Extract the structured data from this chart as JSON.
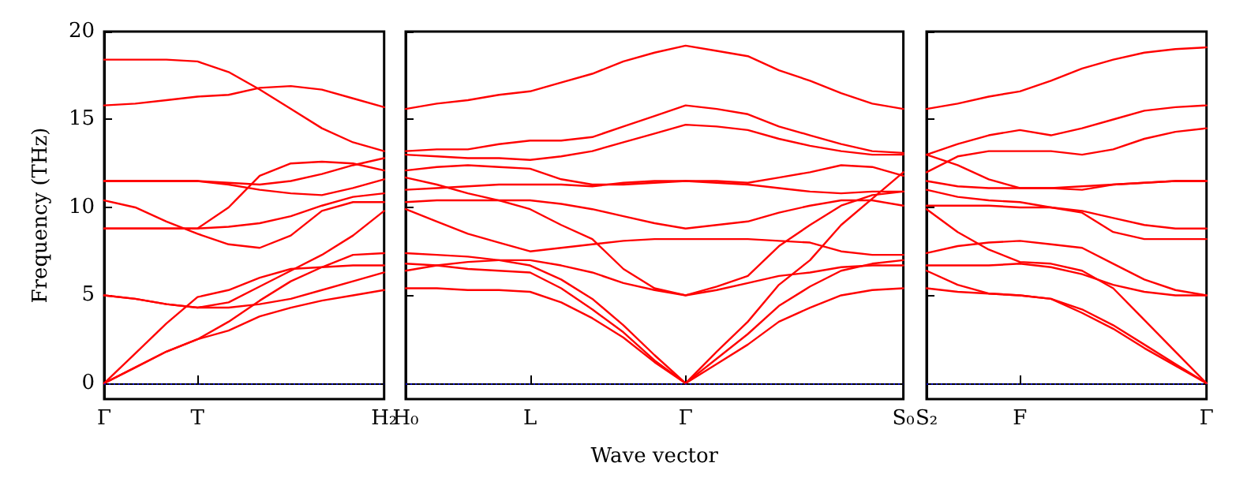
{
  "chart_data": [
    {
      "type": "line",
      "ylabel": "Frequency (THz)",
      "categories": [
        "Γ",
        null,
        null,
        "T",
        null,
        null,
        null,
        null,
        null,
        "H₂"
      ],
      "ylim": [
        -0.9,
        20
      ],
      "yticks": [
        0,
        5,
        10,
        15,
        20
      ],
      "ref_lines": [
        {
          "axis": "y",
          "value": 0,
          "color": "#0000ff",
          "line_style": "dotted"
        }
      ],
      "series": [
        {
          "color": "#ff0000",
          "values": [
            0,
            0.9,
            1.8,
            2.5,
            3.0,
            3.8,
            4.3,
            4.7,
            5.0,
            5.3
          ]
        },
        {
          "color": "#ff0000",
          "values": [
            0,
            0.9,
            1.8,
            2.5,
            3.5,
            4.7,
            5.8,
            6.6,
            7.3,
            7.4
          ]
        },
        {
          "color": "#ff0000",
          "values": [
            0,
            1.7,
            3.4,
            4.9,
            5.3,
            6.0,
            6.5,
            6.6,
            6.7,
            6.7
          ]
        },
        {
          "color": "#ff0000",
          "values": [
            5.0,
            4.8,
            4.5,
            4.3,
            4.3,
            4.5,
            4.8,
            5.3,
            5.8,
            6.3
          ]
        },
        {
          "color": "#ff0000",
          "values": [
            5.0,
            4.8,
            4.5,
            4.3,
            4.6,
            5.5,
            6.4,
            7.3,
            8.4,
            9.8
          ]
        },
        {
          "color": "#ff0000",
          "values": [
            8.8,
            8.8,
            8.8,
            8.8,
            8.9,
            9.1,
            9.5,
            10.1,
            10.6,
            10.8
          ]
        },
        {
          "color": "#ff0000",
          "values": [
            8.8,
            8.8,
            8.8,
            8.8,
            10.0,
            11.8,
            12.5,
            12.6,
            12.5,
            12.1
          ]
        },
        {
          "color": "#ff0000",
          "values": [
            10.4,
            10.0,
            9.2,
            8.5,
            7.9,
            7.7,
            8.4,
            9.8,
            10.3,
            10.3
          ]
        },
        {
          "color": "#ff0000",
          "values": [
            11.5,
            11.5,
            11.5,
            11.5,
            11.4,
            11.3,
            11.5,
            11.9,
            12.4,
            12.8
          ]
        },
        {
          "color": "#ff0000",
          "values": [
            11.5,
            11.5,
            11.5,
            11.5,
            11.3,
            11.0,
            10.8,
            10.7,
            11.1,
            11.6
          ]
        },
        {
          "color": "#ff0000",
          "values": [
            15.8,
            15.9,
            16.1,
            16.3,
            16.4,
            16.8,
            16.9,
            16.7,
            16.2,
            15.7
          ]
        },
        {
          "color": "#ff0000",
          "values": [
            18.4,
            18.4,
            18.4,
            18.3,
            17.7,
            16.7,
            15.6,
            14.5,
            13.7,
            13.2
          ]
        }
      ]
    },
    {
      "type": "line",
      "xlabel": "Wave vector",
      "tick_labels": "x",
      "categories": [
        "H₀",
        null,
        null,
        null,
        "L",
        null,
        null,
        null,
        null,
        "Γ",
        null,
        null,
        null,
        null,
        null,
        null,
        "S₀"
      ],
      "ylim": [
        -0.9,
        20
      ],
      "yticks": [
        0,
        5,
        10,
        15,
        20
      ],
      "ref_lines": [
        {
          "axis": "y",
          "value": 0,
          "color": "#0000ff",
          "line_style": "dotted"
        }
      ],
      "series": [
        {
          "color": "#ff0000",
          "values": [
            15.6,
            15.9,
            16.1,
            16.4,
            16.6,
            17.1,
            17.6,
            18.3,
            18.8,
            19.2,
            18.9,
            18.6,
            17.8,
            17.2,
            16.5,
            15.9,
            15.6
          ]
        },
        {
          "color": "#ff0000",
          "values": [
            13.2,
            13.3,
            13.3,
            13.6,
            13.8,
            13.8,
            14.0,
            14.6,
            15.2,
            15.8,
            15.6,
            15.3,
            14.6,
            14.1,
            13.6,
            13.2,
            13.1
          ]
        },
        {
          "color": "#ff0000",
          "values": [
            13.0,
            12.9,
            12.8,
            12.8,
            12.7,
            12.9,
            13.2,
            13.7,
            14.2,
            14.7,
            14.6,
            14.4,
            13.9,
            13.5,
            13.2,
            13.0,
            13.0
          ]
        },
        {
          "color": "#ff0000",
          "values": [
            12.1,
            12.3,
            12.4,
            12.3,
            12.2,
            11.6,
            11.3,
            11.3,
            11.4,
            11.5,
            11.5,
            11.4,
            11.7,
            12.0,
            12.4,
            12.3,
            11.8
          ]
        },
        {
          "color": "#ff0000",
          "values": [
            11.0,
            11.1,
            11.2,
            11.3,
            11.3,
            11.3,
            11.2,
            11.4,
            11.5,
            11.5,
            11.4,
            11.3,
            11.1,
            10.9,
            10.8,
            10.9,
            10.9
          ]
        },
        {
          "color": "#ff0000",
          "values": [
            10.3,
            10.4,
            10.4,
            10.4,
            10.4,
            10.2,
            9.9,
            9.5,
            9.1,
            8.8,
            9.0,
            9.2,
            9.7,
            10.1,
            10.4,
            10.4,
            10.1
          ]
        },
        {
          "color": "#ff0000",
          "values": [
            9.9,
            9.2,
            8.5,
            8.0,
            7.5,
            7.7,
            7.9,
            8.1,
            8.2,
            8.2,
            8.2,
            8.2,
            8.1,
            8.0,
            7.5,
            7.3,
            7.3
          ]
        },
        {
          "color": "#ff0000",
          "values": [
            11.7,
            11.3,
            10.8,
            10.4,
            9.9,
            9.0,
            8.2,
            6.5,
            5.4,
            5.0,
            5.5,
            6.1,
            7.8,
            9.0,
            10.1,
            10.7,
            10.9
          ]
        },
        {
          "color": "#ff0000",
          "values": [
            6.4,
            6.7,
            6.9,
            7.0,
            7.0,
            6.7,
            6.3,
            5.7,
            5.3,
            5.0,
            5.3,
            5.7,
            6.1,
            6.3,
            6.6,
            6.7,
            6.7
          ]
        },
        {
          "color": "#ff0000",
          "values": [
            7.4,
            7.3,
            7.2,
            7.0,
            6.7,
            5.9,
            4.8,
            3.3,
            1.6,
            0,
            1.8,
            3.5,
            5.6,
            7.0,
            9.0,
            10.5,
            12.0
          ]
        },
        {
          "color": "#ff0000",
          "values": [
            6.8,
            6.7,
            6.5,
            6.4,
            6.3,
            5.4,
            4.2,
            2.9,
            1.3,
            0,
            1.4,
            2.8,
            4.4,
            5.5,
            6.4,
            6.8,
            7.0
          ]
        },
        {
          "color": "#ff0000",
          "values": [
            5.4,
            5.4,
            5.3,
            5.3,
            5.2,
            4.6,
            3.7,
            2.6,
            1.2,
            0,
            1.1,
            2.2,
            3.5,
            4.3,
            5.0,
            5.3,
            5.4
          ]
        }
      ]
    },
    {
      "type": "line",
      "tick_labels": "x",
      "categories": [
        "S₂",
        null,
        null,
        "F",
        null,
        null,
        null,
        null,
        null,
        "Γ"
      ],
      "ylim": [
        -0.9,
        20
      ],
      "yticks": [
        0,
        5,
        10,
        15,
        20
      ],
      "ref_lines": [
        {
          "axis": "y",
          "value": 0,
          "color": "#0000ff",
          "line_style": "dotted"
        }
      ],
      "series": [
        {
          "color": "#ff0000",
          "values": [
            15.6,
            15.9,
            16.3,
            16.6,
            17.2,
            17.9,
            18.4,
            18.8,
            19.0,
            19.1
          ]
        },
        {
          "color": "#ff0000",
          "values": [
            13.0,
            13.6,
            14.1,
            14.4,
            14.1,
            14.5,
            15.0,
            15.5,
            15.7,
            15.8
          ]
        },
        {
          "color": "#ff0000",
          "values": [
            12.0,
            12.9,
            13.2,
            13.2,
            13.2,
            13.0,
            13.3,
            13.9,
            14.3,
            14.5
          ]
        },
        {
          "color": "#ff0000",
          "values": [
            13.0,
            12.4,
            11.6,
            11.1,
            11.1,
            11.2,
            11.3,
            11.4,
            11.5,
            11.5
          ]
        },
        {
          "color": "#ff0000",
          "values": [
            11.5,
            11.2,
            11.1,
            11.1,
            11.1,
            11.0,
            11.3,
            11.4,
            11.5,
            11.5
          ]
        },
        {
          "color": "#ff0000",
          "values": [
            10.1,
            10.1,
            10.1,
            10.0,
            10.0,
            9.8,
            9.4,
            9.0,
            8.8,
            8.8
          ]
        },
        {
          "color": "#ff0000",
          "values": [
            11.0,
            10.6,
            10.4,
            10.3,
            10.0,
            9.7,
            8.6,
            8.2,
            8.2,
            8.2
          ]
        },
        {
          "color": "#ff0000",
          "values": [
            7.4,
            7.8,
            8.0,
            8.1,
            7.9,
            7.7,
            6.8,
            5.9,
            5.3,
            5.0
          ]
        },
        {
          "color": "#ff0000",
          "values": [
            6.7,
            6.7,
            6.7,
            6.8,
            6.6,
            6.2,
            5.6,
            5.2,
            5.0,
            5.0
          ]
        },
        {
          "color": "#ff0000",
          "values": [
            9.9,
            8.6,
            7.6,
            6.9,
            6.8,
            6.4,
            5.4,
            3.6,
            1.8,
            0
          ]
        },
        {
          "color": "#ff0000",
          "values": [
            6.4,
            5.6,
            5.1,
            5.0,
            4.8,
            4.2,
            3.3,
            2.2,
            1.1,
            0
          ]
        },
        {
          "color": "#ff0000",
          "values": [
            5.4,
            5.2,
            5.1,
            5.0,
            4.8,
            4.0,
            3.1,
            2.0,
            1.0,
            0
          ]
        }
      ]
    }
  ]
}
